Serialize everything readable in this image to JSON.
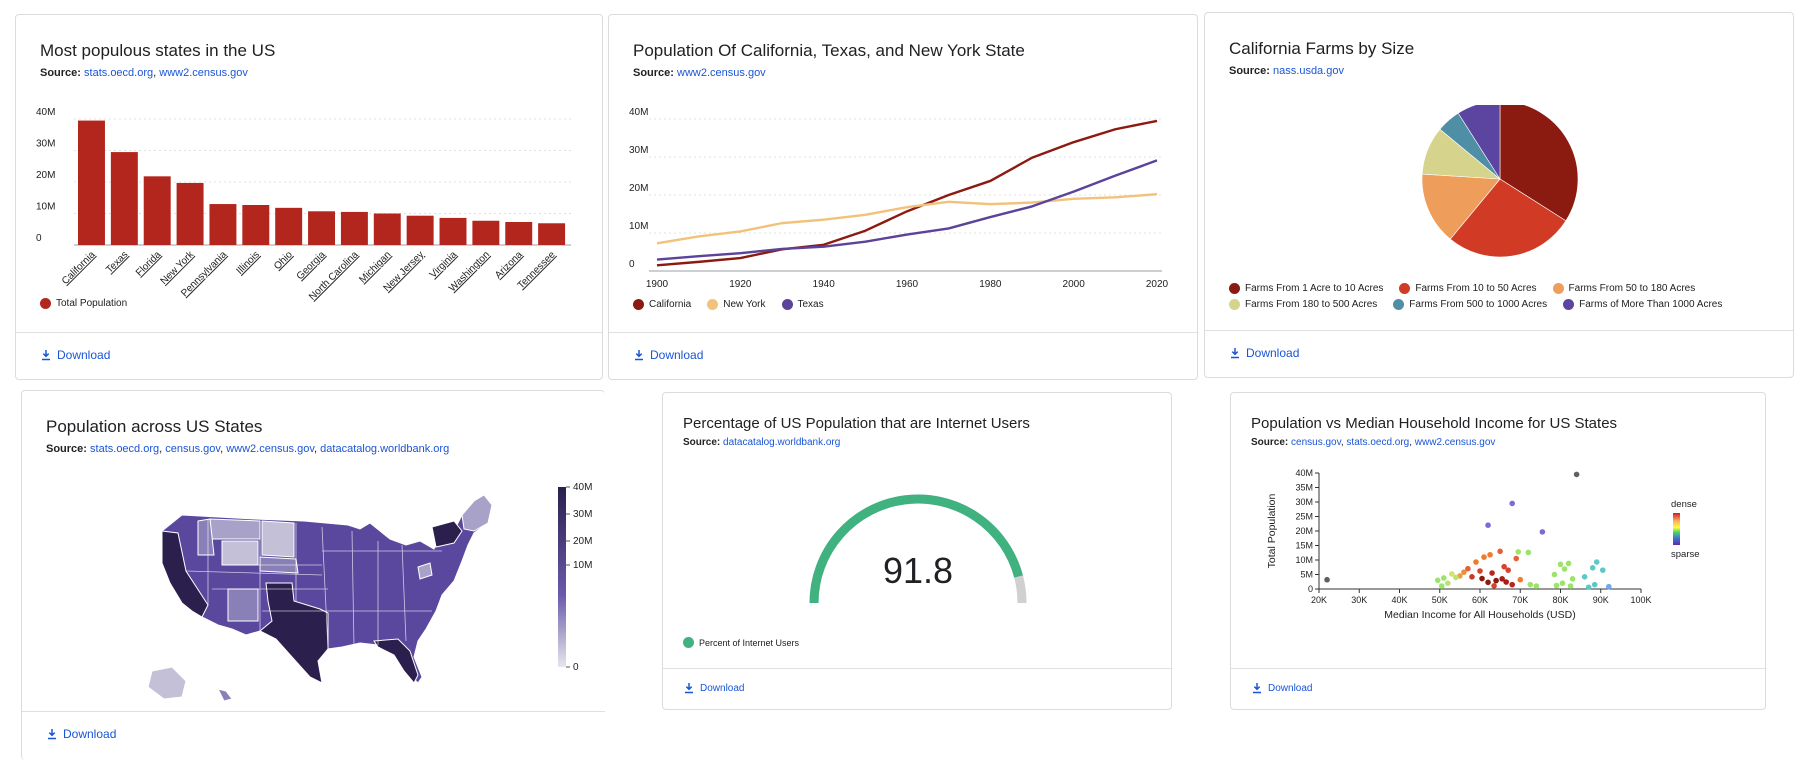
{
  "download_label": "Download",
  "cards": {
    "bar": {
      "title": "Most populous states in the US",
      "source_label": "Source:",
      "sources": [
        "stats.oecd.org",
        "www2.census.gov"
      ]
    },
    "line": {
      "title": "Population Of California, Texas, and New York State",
      "source_label": "Source:",
      "sources": [
        "www2.census.gov"
      ]
    },
    "pie": {
      "title": "California Farms by Size",
      "source_label": "Source:",
      "sources": [
        "nass.usda.gov"
      ]
    },
    "map": {
      "title": "Population across US States",
      "source_label": "Source:",
      "sources": [
        "stats.oecd.org",
        "census.gov",
        "www2.census.gov",
        "datacatalog.worldbank.org"
      ]
    },
    "gauge": {
      "title": "Percentage of US Population that are Internet Users",
      "source_label": "Source:",
      "sources": [
        "datacatalog.worldbank.org"
      ]
    },
    "scatter": {
      "title": "Population vs Median Household Income for US States",
      "source_label": "Source:",
      "sources": [
        "census.gov",
        "stats.oecd.org",
        "www2.census.gov"
      ]
    }
  },
  "chart_data": [
    {
      "type": "bar",
      "title": "Most populous states in the US",
      "categories": [
        "California",
        "Texas",
        "Florida",
        "New York",
        "Pennsylvania",
        "Illinois",
        "Ohio",
        "Georgia",
        "North Carolina",
        "Michigan",
        "New Jersey",
        "Virginia",
        "Washington",
        "Arizona",
        "Tennessee"
      ],
      "series": [
        {
          "name": "Total Population",
          "values": [
            39.5,
            29.5,
            21.8,
            19.7,
            13.0,
            12.7,
            11.8,
            10.7,
            10.5,
            10.0,
            9.3,
            8.6,
            7.7,
            7.3,
            6.9
          ]
        }
      ],
      "ylim": [
        0,
        40
      ],
      "yticks": [
        "0",
        "10M",
        "20M",
        "30M",
        "40M"
      ],
      "grid": true,
      "legend": "bottom-left",
      "color": "#b3261e"
    },
    {
      "type": "line",
      "title": "Population Of California, Texas, and New York State",
      "x": [
        1900,
        1910,
        1920,
        1930,
        1940,
        1950,
        1960,
        1970,
        1980,
        1990,
        2000,
        2010,
        2020
      ],
      "series": [
        {
          "name": "California",
          "color": "#8b1a10",
          "values": [
            1.5,
            2.4,
            3.4,
            5.7,
            6.9,
            10.6,
            15.7,
            20.0,
            23.7,
            29.8,
            33.9,
            37.3,
            39.5
          ]
        },
        {
          "name": "New York",
          "color": "#f2c27b",
          "values": [
            7.3,
            9.1,
            10.4,
            12.6,
            13.5,
            14.8,
            16.8,
            18.2,
            17.6,
            18.0,
            19.0,
            19.4,
            20.2
          ]
        },
        {
          "name": "Texas",
          "color": "#5a4399",
          "values": [
            3.0,
            3.9,
            4.7,
            5.8,
            6.4,
            7.7,
            9.6,
            11.2,
            14.2,
            17.0,
            20.9,
            25.1,
            29.1
          ]
        }
      ],
      "xticks": [
        "1900",
        "1920",
        "1940",
        "1960",
        "1980",
        "2000",
        "2020"
      ],
      "yticks": [
        "0",
        "10M",
        "20M",
        "30M",
        "40M"
      ],
      "ylim": [
        0,
        40
      ],
      "grid": true,
      "legend": "bottom-left"
    },
    {
      "type": "pie",
      "title": "California Farms by Size",
      "series": [
        {
          "name": "Farms From 1 Acre to 10 Acres",
          "value": 34,
          "color": "#8b1a10"
        },
        {
          "name": "Farms From 10 to 50 Acres",
          "value": 27,
          "color": "#d13b26"
        },
        {
          "name": "Farms From 50 to 180 Acres",
          "value": 15,
          "color": "#ef9d5a"
        },
        {
          "name": "Farms From 180 to 500 Acres",
          "value": 10,
          "color": "#d6d38c"
        },
        {
          "name": "Farms From 500 to 1000 Acres",
          "value": 5,
          "color": "#4e8fa6"
        },
        {
          "name": "Farms of More Than 1000 Acres",
          "value": 9,
          "color": "#5b45a0"
        }
      ],
      "legend": "bottom"
    },
    {
      "type": "heatmap",
      "title": "Population across US States",
      "color_scale": {
        "ticks": [
          "0",
          "10M",
          "20M",
          "30M",
          "40M"
        ],
        "min_color": "#e6e6ec",
        "max_color": "#2b1f4d"
      },
      "legend": "right"
    },
    {
      "type": "gauge",
      "title": "Percentage of US Population that are Internet Users",
      "value": 91.8,
      "value_label": "91.8",
      "max": 100,
      "series": [
        {
          "name": "Percent of Internet Users",
          "color": "#3fb27f"
        }
      ],
      "legend": "bottom-left"
    },
    {
      "type": "scatter",
      "title": "Population vs Median Household Income for US States",
      "xlabel": "Median Income for All Households (USD)",
      "ylabel": "Total Population",
      "xlim": [
        20,
        100
      ],
      "ylim": [
        0,
        40
      ],
      "xticks": [
        "20K",
        "30K",
        "40K",
        "50K",
        "60K",
        "70K",
        "80K",
        "90K",
        "100K"
      ],
      "yticks": [
        "0",
        "5M",
        "10M",
        "15M",
        "20M",
        "25M",
        "30M",
        "35M",
        "40M"
      ],
      "colorbar": {
        "top": "dense",
        "bottom": "sparse"
      },
      "points": [
        {
          "x": 22,
          "y": 3.2,
          "c": "#606060"
        },
        {
          "x": 84,
          "y": 39.5,
          "c": "#606060"
        },
        {
          "x": 68,
          "y": 29.5,
          "c": "#7b6ad8"
        },
        {
          "x": 62,
          "y": 22,
          "c": "#7b6ad8"
        },
        {
          "x": 75.5,
          "y": 19.7,
          "c": "#7b6ad8"
        },
        {
          "x": 61,
          "y": 11,
          "c": "#ef7b2d"
        },
        {
          "x": 62.5,
          "y": 11.8,
          "c": "#ef7b2d"
        },
        {
          "x": 65,
          "y": 13,
          "c": "#e8603a"
        },
        {
          "x": 69,
          "y": 10.5,
          "c": "#e8603a"
        },
        {
          "x": 66,
          "y": 7.7,
          "c": "#d8432f"
        },
        {
          "x": 59,
          "y": 9.3,
          "c": "#ef7b2d"
        },
        {
          "x": 57,
          "y": 7,
          "c": "#e8603a"
        },
        {
          "x": 60,
          "y": 6.2,
          "c": "#d8432f"
        },
        {
          "x": 63,
          "y": 5.5,
          "c": "#b8261f"
        },
        {
          "x": 65.5,
          "y": 3.5,
          "c": "#a81e16"
        },
        {
          "x": 64,
          "y": 2.9,
          "c": "#8b1a10"
        },
        {
          "x": 62,
          "y": 2.3,
          "c": "#8b1a10"
        },
        {
          "x": 66.5,
          "y": 2.4,
          "c": "#a81e16"
        },
        {
          "x": 68,
          "y": 1.5,
          "c": "#b8261f"
        },
        {
          "x": 63.5,
          "y": 1.1,
          "c": "#d8432f"
        },
        {
          "x": 67,
          "y": 6.5,
          "c": "#d8432f"
        },
        {
          "x": 60.5,
          "y": 3.6,
          "c": "#8b1a10"
        },
        {
          "x": 55,
          "y": 4.5,
          "c": "#e8a040"
        },
        {
          "x": 56,
          "y": 5.8,
          "c": "#e89040"
        },
        {
          "x": 58,
          "y": 4.2,
          "c": "#c83a28"
        },
        {
          "x": 70,
          "y": 3.2,
          "c": "#ef7b2d"
        },
        {
          "x": 69.5,
          "y": 12.8,
          "c": "#9be36a"
        },
        {
          "x": 72,
          "y": 12.6,
          "c": "#9be36a"
        },
        {
          "x": 54,
          "y": 4.0,
          "c": "#bfe36a"
        },
        {
          "x": 52,
          "y": 2.0,
          "c": "#bfe36a"
        },
        {
          "x": 50.5,
          "y": 1.0,
          "c": "#9be36a"
        },
        {
          "x": 49.5,
          "y": 3.0,
          "c": "#9be36a"
        },
        {
          "x": 53,
          "y": 5.2,
          "c": "#d3e36a"
        },
        {
          "x": 51,
          "y": 3.8,
          "c": "#9be36a"
        },
        {
          "x": 74,
          "y": 1.0,
          "c": "#9be36a"
        },
        {
          "x": 72.5,
          "y": 1.5,
          "c": "#9be36a"
        },
        {
          "x": 78.5,
          "y": 5.0,
          "c": "#9be36a"
        },
        {
          "x": 80,
          "y": 8.5,
          "c": "#9be36a"
        },
        {
          "x": 82,
          "y": 8.8,
          "c": "#9be36a"
        },
        {
          "x": 81,
          "y": 6.9,
          "c": "#9be36a"
        },
        {
          "x": 83,
          "y": 3.5,
          "c": "#9be36a"
        },
        {
          "x": 80.5,
          "y": 2.0,
          "c": "#9be36a"
        },
        {
          "x": 79,
          "y": 1.2,
          "c": "#9be36a"
        },
        {
          "x": 82.5,
          "y": 1.0,
          "c": "#9be36a"
        },
        {
          "x": 86,
          "y": 4.2,
          "c": "#5ec8c8"
        },
        {
          "x": 88,
          "y": 7.3,
          "c": "#5ec8c8"
        },
        {
          "x": 89,
          "y": 9.3,
          "c": "#5ec8c8"
        },
        {
          "x": 90.5,
          "y": 6.5,
          "c": "#5ec8c8"
        },
        {
          "x": 92,
          "y": 0.8,
          "c": "#6aa8f0"
        },
        {
          "x": 88.5,
          "y": 1.5,
          "c": "#5ec8c8"
        },
        {
          "x": 87,
          "y": 0.6,
          "c": "#5ec8c8"
        }
      ]
    }
  ]
}
